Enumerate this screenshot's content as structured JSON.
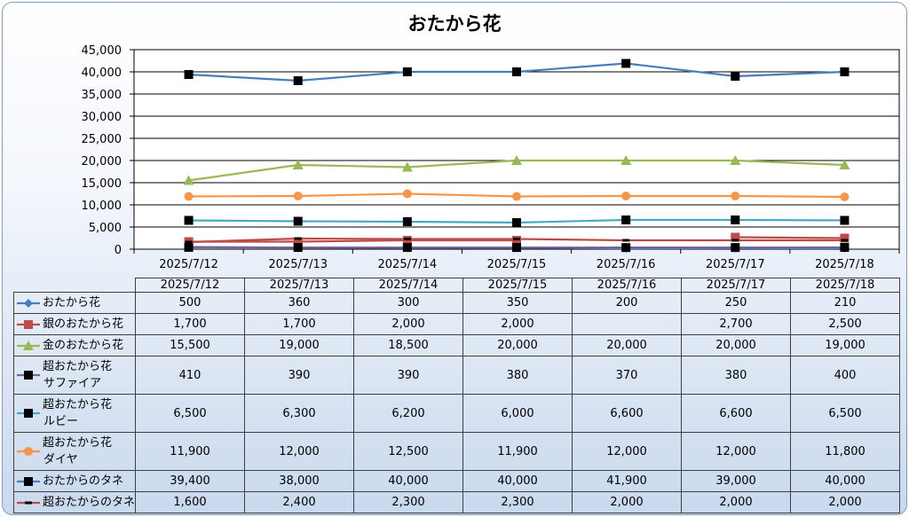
{
  "chart_data": {
    "type": "line",
    "title": "おたから花",
    "categories": [
      "2025/7/12",
      "2025/7/13",
      "2025/7/14",
      "2025/7/15",
      "2025/7/16",
      "2025/7/17",
      "2025/7/18"
    ],
    "ylim": [
      0,
      45000
    ],
    "yticks": [
      "0",
      "5,000",
      "10,000",
      "15,000",
      "20,000",
      "25,000",
      "30,000",
      "35,000",
      "40,000",
      "45,000"
    ],
    "grid": true,
    "legend": "data-table",
    "series": [
      {
        "name": "おたから花",
        "color": "#4a7ebb",
        "marker": "diamond",
        "values": [
          500,
          360,
          300,
          350,
          200,
          250,
          210
        ],
        "labels": [
          "500",
          "360",
          "300",
          "350",
          "200",
          "250",
          "210"
        ]
      },
      {
        "name": "銀のおたから花",
        "color": "#be4b48",
        "marker": "square",
        "values": [
          1700,
          1700,
          2000,
          2000,
          null,
          2700,
          2500
        ],
        "labels": [
          "1,700",
          "1,700",
          "2,000",
          "2,000",
          "",
          "2,700",
          "2,500"
        ]
      },
      {
        "name": "金のおたから花",
        "color": "#98b954",
        "marker": "triangle",
        "values": [
          15500,
          19000,
          18500,
          20000,
          20000,
          20000,
          19000
        ],
        "labels": [
          "15,500",
          "19,000",
          "18,500",
          "20,000",
          "20,000",
          "20,000",
          "19,000"
        ]
      },
      {
        "name": "超おたから花 サファイア",
        "name_lines": [
          "超おたから花",
          "サファイア"
        ],
        "color": "#7d60a0",
        "marker": "blacksquare",
        "values": [
          410,
          390,
          390,
          380,
          370,
          380,
          400
        ],
        "labels": [
          "410",
          "390",
          "390",
          "380",
          "370",
          "380",
          "400"
        ]
      },
      {
        "name": "超おたから花 ルビー",
        "name_lines": [
          "超おたから花",
          "ルビー"
        ],
        "color": "#46aac5",
        "marker": "blacksquare",
        "values": [
          6500,
          6300,
          6200,
          6000,
          6600,
          6600,
          6500
        ],
        "labels": [
          "6,500",
          "6,300",
          "6,200",
          "6,000",
          "6,600",
          "6,600",
          "6,500"
        ]
      },
      {
        "name": "超おたから花 ダイヤ",
        "name_lines": [
          "超おたから花",
          "ダイヤ"
        ],
        "color": "#f79646",
        "marker": "circle",
        "values": [
          11900,
          12000,
          12500,
          11900,
          12000,
          12000,
          11800
        ],
        "labels": [
          "11,900",
          "12,000",
          "12,500",
          "11,900",
          "12,000",
          "12,000",
          "11,800"
        ]
      },
      {
        "name": "おたからのタネ",
        "color": "#4a7ebb",
        "marker": "blacksquare",
        "values": [
          39400,
          38000,
          40000,
          40000,
          41900,
          39000,
          40000
        ],
        "labels": [
          "39,400",
          "38,000",
          "40,000",
          "40,000",
          "41,900",
          "39,000",
          "40,000"
        ]
      },
      {
        "name": "超おたからのタネ",
        "color": "#be4b48",
        "marker": "dash",
        "values": [
          1600,
          2400,
          2300,
          2300,
          2000,
          2000,
          2000
        ],
        "labels": [
          "1,600",
          "2,400",
          "2,300",
          "2,300",
          "2,000",
          "2,000",
          "2,000"
        ]
      }
    ]
  }
}
